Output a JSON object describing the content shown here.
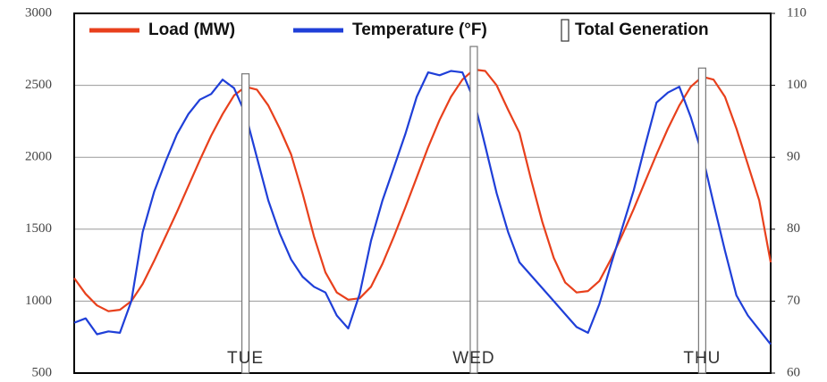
{
  "chart_data": {
    "type": "line",
    "categories": [
      null,
      null,
      null,
      null,
      null,
      null,
      null,
      null,
      null,
      null,
      null,
      null,
      null,
      null,
      null,
      "TUE",
      null,
      null,
      null,
      null,
      null,
      null,
      null,
      null,
      null,
      null,
      null,
      null,
      null,
      null,
      null,
      null,
      null,
      null,
      null,
      "WED",
      null,
      null,
      null,
      null,
      null,
      null,
      null,
      null,
      null,
      null,
      null,
      null,
      null,
      null,
      null,
      null,
      null,
      null,
      null,
      "THU",
      null,
      null,
      null,
      null,
      null,
      null
    ],
    "series": [
      {
        "name": "Load (MW)",
        "color": "#e8401c",
        "type": "line",
        "values": [
          1160,
          1050,
          970,
          930,
          940,
          1000,
          1120,
          1280,
          1450,
          1620,
          1800,
          1980,
          2150,
          2300,
          2430,
          2490,
          2470,
          2360,
          2200,
          2020,
          1750,
          1450,
          1200,
          1060,
          1010,
          1020,
          1100,
          1260,
          1450,
          1650,
          1860,
          2070,
          2260,
          2420,
          2540,
          2610,
          2600,
          2500,
          2330,
          2170,
          1850,
          1550,
          1300,
          1130,
          1060,
          1070,
          1140,
          1290,
          1460,
          1640,
          1830,
          2020,
          2200,
          2360,
          2490,
          2560,
          2540,
          2420,
          2200,
          1950,
          1700,
          1270
        ]
      },
      {
        "name": "Temperature (°F)",
        "color": "#1f3fd8",
        "type": "line",
        "axis": "y2",
        "values": [
          67,
          67.6,
          65.4,
          65.8,
          65.6,
          70,
          79.6,
          85.2,
          89.4,
          93.2,
          96,
          98,
          98.8,
          100.8,
          99.6,
          96,
          90,
          84,
          79.4,
          75.8,
          73.4,
          72,
          71.2,
          68,
          66.2,
          71,
          78.4,
          84,
          88.6,
          93.2,
          98.4,
          101.8,
          101.4,
          102,
          101.8,
          98,
          91.6,
          85,
          79.6,
          75.4,
          73.6,
          71.8,
          70,
          68.2,
          66.4,
          65.6,
          69.6,
          75,
          80.2,
          85.4,
          91.6,
          97.6,
          99,
          99.8,
          95.6,
          90.4,
          83.6,
          77,
          70.8,
          68,
          66,
          64
        ]
      },
      {
        "name": "Total Generation",
        "color": "#ffffff",
        "type": "bar",
        "values": [
          null,
          null,
          null,
          null,
          null,
          null,
          null,
          null,
          null,
          null,
          null,
          null,
          null,
          null,
          null,
          2580,
          null,
          null,
          null,
          null,
          null,
          null,
          null,
          null,
          null,
          null,
          null,
          null,
          null,
          null,
          null,
          null,
          null,
          null,
          null,
          2770,
          null,
          null,
          null,
          null,
          null,
          null,
          null,
          null,
          null,
          null,
          null,
          null,
          null,
          null,
          null,
          null,
          null,
          null,
          null,
          2620,
          null,
          null,
          null,
          null,
          null,
          null
        ]
      }
    ],
    "ylim": [
      500,
      3000
    ],
    "yticks": [
      500,
      1000,
      1500,
      2000,
      2500,
      3000
    ],
    "y2lim": [
      60,
      110
    ],
    "y2ticks": [
      60,
      70,
      80,
      90,
      100,
      110
    ],
    "grid": true,
    "legend": "top"
  }
}
